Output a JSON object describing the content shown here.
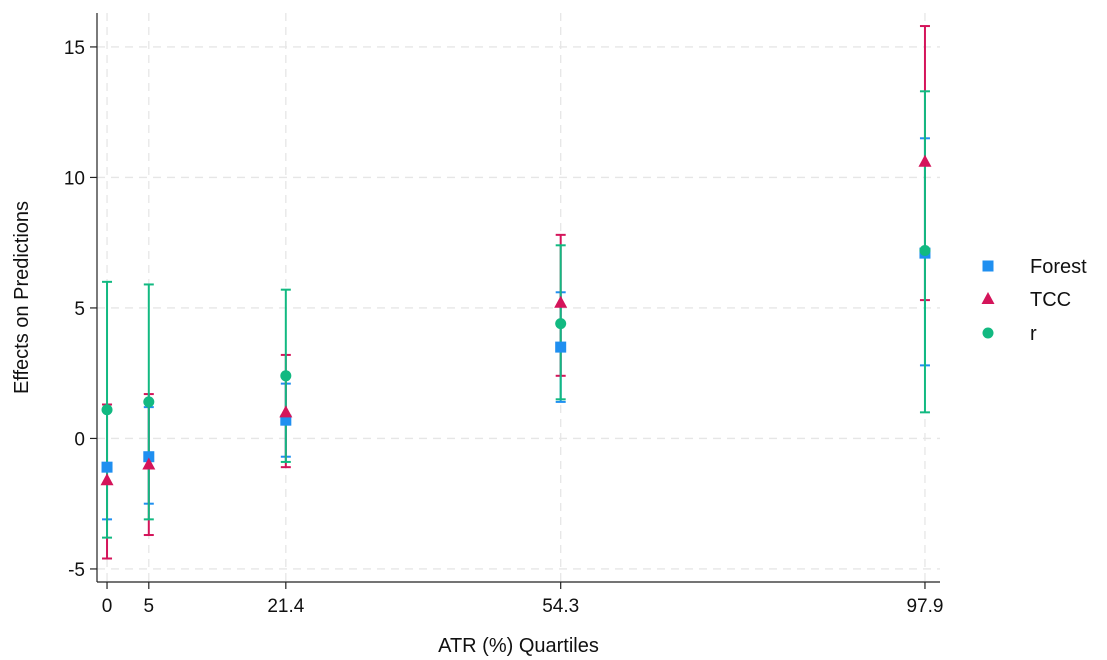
{
  "chart_data": {
    "type": "scatter",
    "title": "",
    "xlabel": "ATR (%) Quartiles",
    "ylabel": "Effects on Predictions",
    "x_ticks": [
      0,
      5,
      21.4,
      54.3,
      97.9
    ],
    "x_tick_labels": [
      "0",
      "5",
      "21.4",
      "54.3",
      "97.9"
    ],
    "y_ticks": [
      -5,
      0,
      5,
      10,
      15
    ],
    "y_tick_labels": [
      "-5",
      "0",
      "5",
      "10",
      "15"
    ],
    "xlim": [
      -1.2,
      99.7
    ],
    "ylim": [
      -5.5,
      16.3
    ],
    "grid": true,
    "legend_position": "right",
    "series": [
      {
        "name": "Forest",
        "marker": "square",
        "color": "#1f8ff0",
        "points": [
          {
            "x": 0,
            "y": -1.1,
            "lo": -3.1,
            "hi": 1.3
          },
          {
            "x": 5,
            "y": -0.7,
            "lo": -2.5,
            "hi": 1.2
          },
          {
            "x": 21.4,
            "y": 0.7,
            "lo": -0.7,
            "hi": 2.1
          },
          {
            "x": 54.3,
            "y": 3.5,
            "lo": 1.4,
            "hi": 5.6
          },
          {
            "x": 97.9,
            "y": 7.1,
            "lo": 2.8,
            "hi": 11.5
          }
        ]
      },
      {
        "name": "TCC",
        "marker": "triangle",
        "color": "#d4145a",
        "points": [
          {
            "x": 0,
            "y": -1.6,
            "lo": -4.6,
            "hi": 1.3
          },
          {
            "x": 5,
            "y": -1.0,
            "lo": -3.7,
            "hi": 1.7
          },
          {
            "x": 21.4,
            "y": 1.0,
            "lo": -1.1,
            "hi": 3.2
          },
          {
            "x": 54.3,
            "y": 5.2,
            "lo": 2.4,
            "hi": 7.8
          },
          {
            "x": 97.9,
            "y": 10.6,
            "lo": 5.3,
            "hi": 15.8
          }
        ]
      },
      {
        "name": "r",
        "marker": "circle",
        "color": "#12b981",
        "points": [
          {
            "x": 0,
            "y": 1.1,
            "lo": -3.8,
            "hi": 6.0
          },
          {
            "x": 5,
            "y": 1.4,
            "lo": -3.1,
            "hi": 5.9
          },
          {
            "x": 21.4,
            "y": 2.4,
            "lo": -0.9,
            "hi": 5.7
          },
          {
            "x": 54.3,
            "y": 4.4,
            "lo": 1.5,
            "hi": 7.4
          },
          {
            "x": 97.9,
            "y": 7.2,
            "lo": 1.0,
            "hi": 13.3
          }
        ]
      }
    ]
  }
}
